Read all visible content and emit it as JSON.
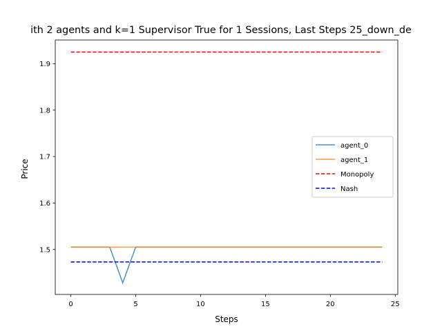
{
  "chart_data": {
    "type": "line",
    "title": "ith 2 agents and k=1 Supervisor True for 1 Sessions, Last Steps 25_down_de",
    "xlabel": "Steps",
    "ylabel": "Price",
    "xlim": [
      -1.2,
      25.2
    ],
    "ylim": [
      1.403,
      1.951
    ],
    "xticks": [
      0,
      5,
      10,
      15,
      20,
      25
    ],
    "xtick_labels": [
      "0",
      "5",
      "10",
      "15",
      "20",
      "25"
    ],
    "yticks": [
      1.5,
      1.6,
      1.7,
      1.8,
      1.9
    ],
    "ytick_labels": [
      "1.5",
      "1.6",
      "1.7",
      "1.8",
      "1.9"
    ],
    "grid": false,
    "legend_position": "center-right",
    "series": [
      {
        "name": "agent_0",
        "color": "#1f77b4",
        "style": "solid",
        "x": [
          0,
          1,
          2,
          3,
          4,
          5,
          6,
          7,
          8,
          9,
          10,
          11,
          12,
          13,
          14,
          15,
          16,
          17,
          18,
          19,
          20,
          21,
          22,
          23,
          24
        ],
        "y": [
          1.505,
          1.505,
          1.505,
          1.505,
          1.428,
          1.505,
          1.505,
          1.505,
          1.505,
          1.505,
          1.505,
          1.505,
          1.505,
          1.505,
          1.505,
          1.505,
          1.505,
          1.505,
          1.505,
          1.505,
          1.505,
          1.505,
          1.505,
          1.505,
          1.505
        ]
      },
      {
        "name": "agent_1",
        "color": "#ff7f0e",
        "style": "solid",
        "x": [
          0,
          1,
          2,
          3,
          4,
          5,
          6,
          7,
          8,
          9,
          10,
          11,
          12,
          13,
          14,
          15,
          16,
          17,
          18,
          19,
          20,
          21,
          22,
          23,
          24
        ],
        "y": [
          1.505,
          1.505,
          1.505,
          1.505,
          1.505,
          1.505,
          1.505,
          1.505,
          1.505,
          1.505,
          1.505,
          1.505,
          1.505,
          1.505,
          1.505,
          1.505,
          1.505,
          1.505,
          1.505,
          1.505,
          1.505,
          1.505,
          1.505,
          1.505,
          1.505
        ]
      },
      {
        "name": "Monopoly",
        "color": "#ff0000",
        "style": "dashed",
        "x": [
          0,
          24
        ],
        "y": [
          1.925,
          1.925
        ]
      },
      {
        "name": "Nash",
        "color": "#0000ff",
        "style": "dashed",
        "x": [
          0,
          24
        ],
        "y": [
          1.473,
          1.473
        ]
      }
    ]
  }
}
